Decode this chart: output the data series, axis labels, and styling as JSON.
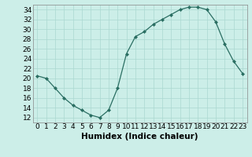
{
  "x": [
    0,
    1,
    2,
    3,
    4,
    5,
    6,
    7,
    8,
    9,
    10,
    11,
    12,
    13,
    14,
    15,
    16,
    17,
    18,
    19,
    20,
    21,
    22,
    23
  ],
  "y": [
    20.5,
    20,
    18,
    16,
    14.5,
    13.5,
    12.5,
    12,
    13.5,
    18,
    25,
    28.5,
    29.5,
    31,
    32,
    33,
    34,
    34.5,
    34.5,
    34,
    31.5,
    27,
    23.5,
    21
  ],
  "line_color": "#2a6e62",
  "marker_color": "#2a6e62",
  "bg_color": "#cceee8",
  "grid_color": "#aad8d0",
  "xlabel": "Humidex (Indice chaleur)",
  "xlabel_fontsize": 7.5,
  "xlim": [
    -0.5,
    23.5
  ],
  "ylim": [
    11,
    35
  ],
  "yticks": [
    12,
    14,
    16,
    18,
    20,
    22,
    24,
    26,
    28,
    30,
    32,
    34
  ],
  "xticks": [
    0,
    1,
    2,
    3,
    4,
    5,
    6,
    7,
    8,
    9,
    10,
    11,
    12,
    13,
    14,
    15,
    16,
    17,
    18,
    19,
    20,
    21,
    22,
    23
  ],
  "tick_fontsize": 6.5
}
